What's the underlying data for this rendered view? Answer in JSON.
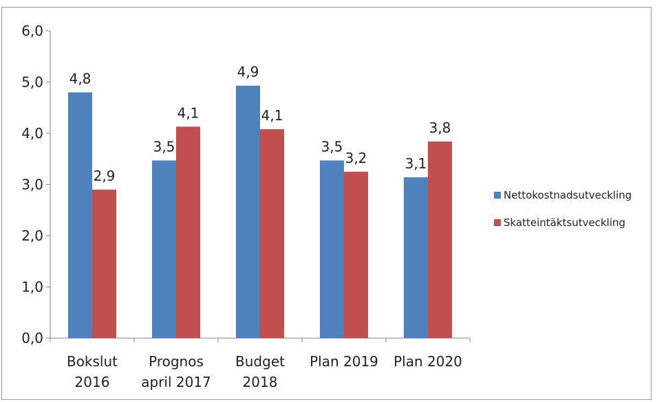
{
  "chart_data": {
    "type": "bar",
    "categories": [
      [
        "Bokslut",
        "2016"
      ],
      [
        "Prognos",
        "april 2017"
      ],
      [
        "Budget",
        "2018"
      ],
      [
        "Plan 2019"
      ],
      [
        "Plan 2020"
      ]
    ],
    "series": [
      {
        "name": "Nettokostnadsutveckling",
        "color": "#4f81bd",
        "values": [
          4.8,
          3.47,
          4.93,
          3.47,
          3.14
        ],
        "labels": [
          "4,8",
          "3,5",
          "4,9",
          "3,5",
          "3,1"
        ]
      },
      {
        "name": "Skatteintäktsutveckling",
        "color": "#c0504d",
        "values": [
          2.9,
          4.13,
          4.08,
          3.25,
          3.84
        ],
        "labels": [
          "2,9",
          "4,1",
          "4,1",
          "3,2",
          "3,8"
        ]
      }
    ],
    "yticks": [
      "0,0",
      "1,0",
      "2,0",
      "3,0",
      "4,0",
      "5,0",
      "6,0"
    ],
    "ylim": [
      0,
      6
    ],
    "legend_position": "right",
    "grid": false
  }
}
